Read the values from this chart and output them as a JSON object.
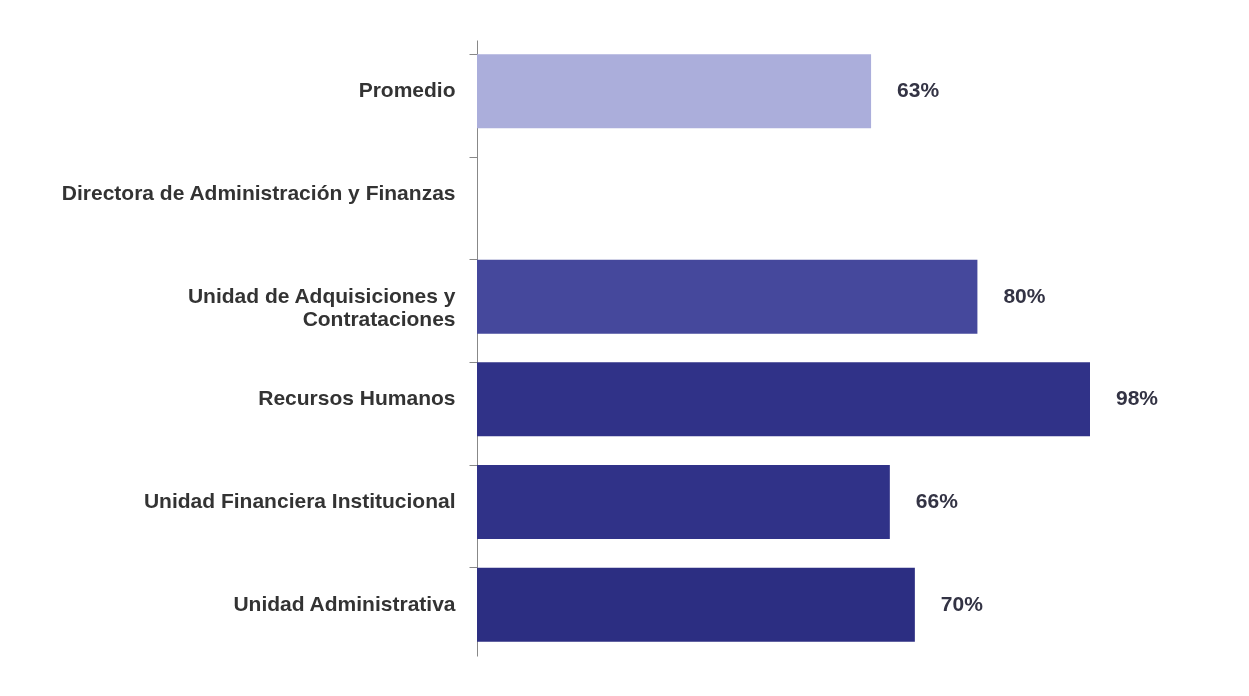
{
  "chart_data": {
    "type": "bar",
    "orientation": "horizontal",
    "categories": [
      "Promedio",
      "Directora de Administración y Finanzas",
      "Unidad de Adquisiciones y Contrataciones",
      "Recursos Humanos",
      "Unidad Financiera Institucional",
      "Unidad Administrativa"
    ],
    "values": [
      63,
      0,
      80,
      98,
      66,
      70
    ],
    "value_labels": [
      "63%",
      null,
      "80%",
      "98%",
      "66%",
      "70%"
    ],
    "colors": [
      "#abaedb",
      "#3c3f95",
      "#45489c",
      "#303288",
      "#303288",
      "#2c2e82"
    ],
    "grid": false,
    "legend": false
  }
}
